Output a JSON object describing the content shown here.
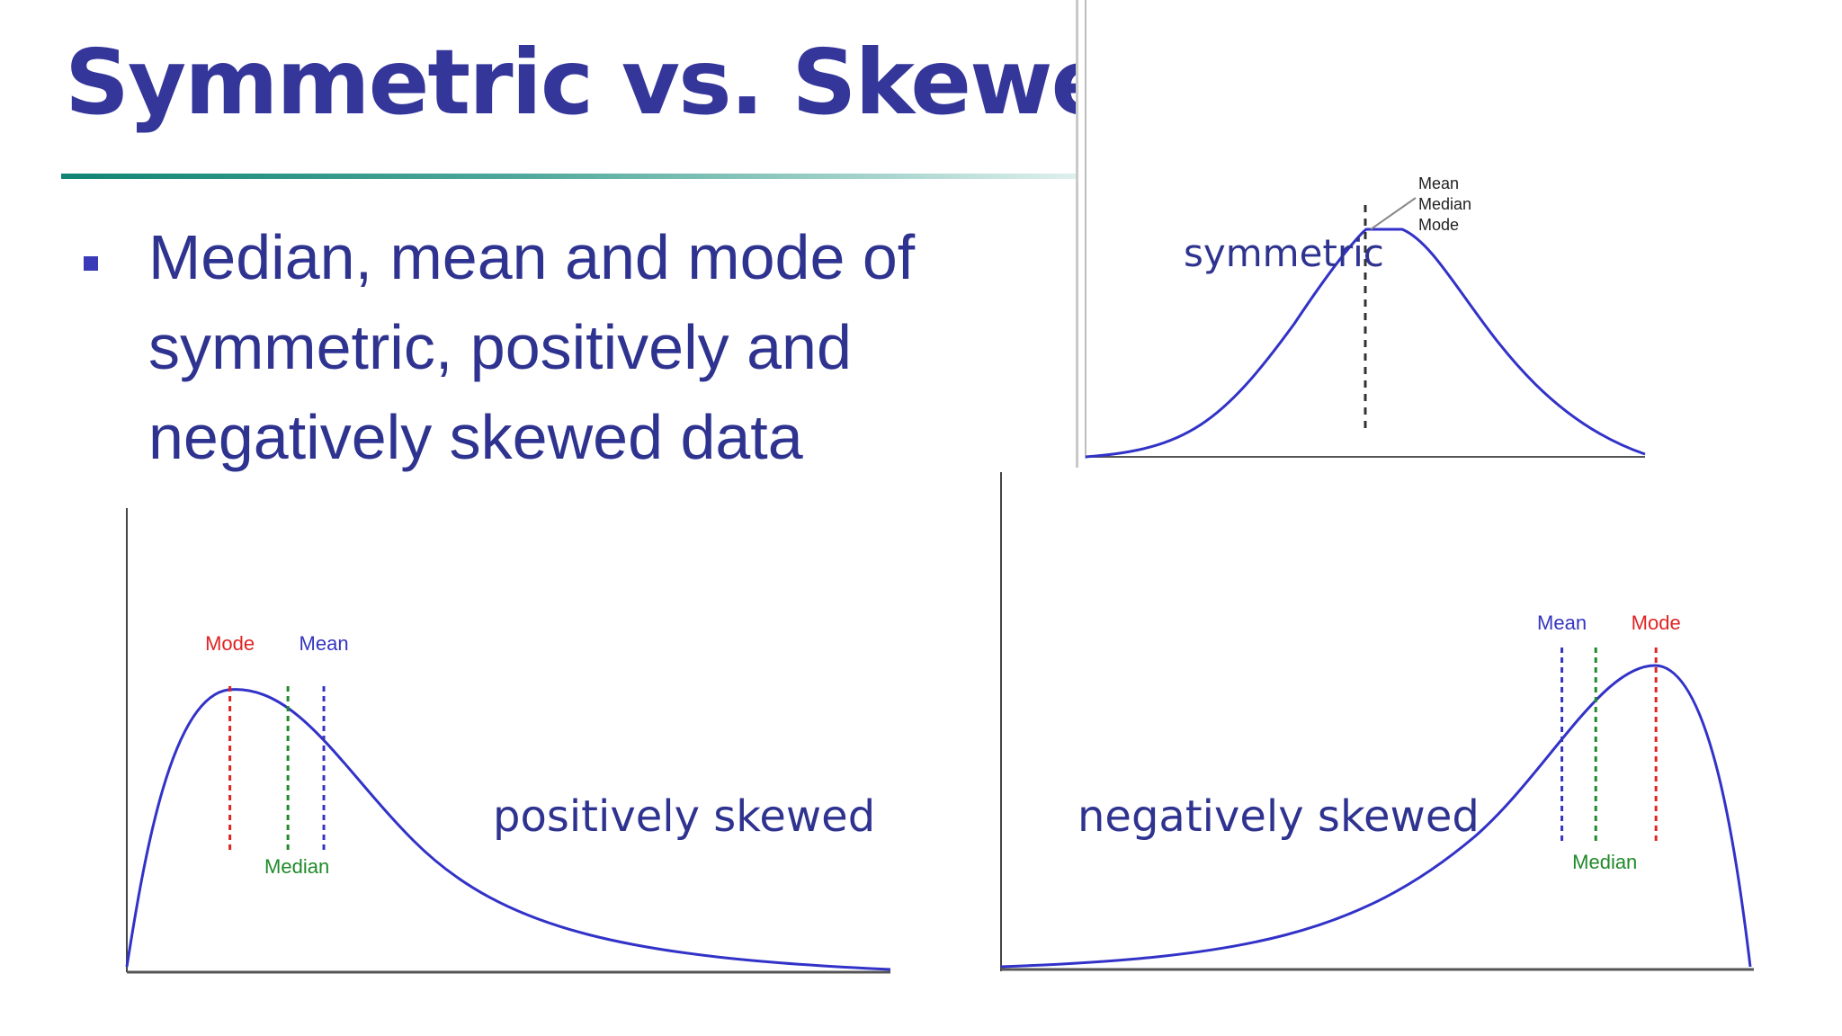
{
  "slide": {
    "title": "Symmetric vs. Skewed Dat",
    "bullet": "Median, mean and mode of symmetric, positively and negatively skewed data"
  },
  "colors": {
    "title": "#35369a",
    "text": "#2f3390",
    "curve": "#3232c8",
    "mode": "#e02424",
    "median": "#1f8a2a",
    "mean": "#3535c0",
    "axis": "#555555"
  },
  "chart_data": [
    {
      "type": "line",
      "name_label": "symmetric",
      "annotations": [
        "Mean",
        "Median",
        "Mode"
      ],
      "description_curve": "bell",
      "peak_x": 0.5
    },
    {
      "type": "line",
      "name_label": "positively skewed",
      "markers": [
        {
          "label": "Mode",
          "x": 0.135,
          "color_key": "mode"
        },
        {
          "label": "Median",
          "x": 0.211,
          "color_key": "median"
        },
        {
          "label": "Mean",
          "x": 0.258,
          "color_key": "mean"
        }
      ]
    },
    {
      "type": "line",
      "name_label": "negatively skewed",
      "markers": [
        {
          "label": "Mean",
          "x": 0.745,
          "color_key": "mean"
        },
        {
          "label": "Median",
          "x": 0.79,
          "color_key": "median"
        },
        {
          "label": "Mode",
          "x": 0.87,
          "color_key": "mode"
        }
      ]
    }
  ]
}
